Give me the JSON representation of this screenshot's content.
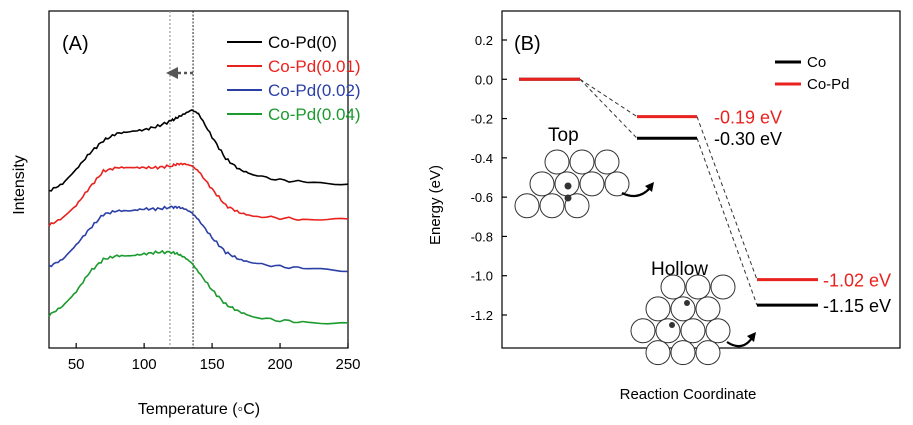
{
  "chart_data": [
    {
      "type": "line",
      "panel_label": "(A)",
      "xlabel": "Temperature (◦C)",
      "ylabel": "Intensity",
      "xlim": [
        30,
        250
      ],
      "xticks": [
        50,
        100,
        150,
        200,
        250
      ],
      "x": [
        30,
        40,
        50,
        60,
        70,
        80,
        90,
        100,
        110,
        120,
        125,
        130,
        135,
        140,
        150,
        160,
        170,
        180,
        200,
        220,
        250
      ],
      "series": [
        {
          "name": "Co-Pd(0)",
          "color": "#000000",
          "values": [
            0.3,
            0.34,
            0.42,
            0.51,
            0.58,
            0.62,
            0.63,
            0.64,
            0.66,
            0.69,
            0.71,
            0.73,
            0.75,
            0.73,
            0.6,
            0.48,
            0.42,
            0.39,
            0.36,
            0.35,
            0.34
          ]
        },
        {
          "name": "Co-Pd(0.01)",
          "color": "#e8231f",
          "values": [
            0.11,
            0.15,
            0.22,
            0.32,
            0.41,
            0.43,
            0.43,
            0.43,
            0.43,
            0.44,
            0.45,
            0.45,
            0.44,
            0.41,
            0.31,
            0.22,
            0.18,
            0.16,
            0.15,
            0.14,
            0.14
          ]
        },
        {
          "name": "Co-Pd(0.02)",
          "color": "#2b3fa6",
          "values": [
            -0.12,
            -0.08,
            0.0,
            0.09,
            0.17,
            0.19,
            0.19,
            0.2,
            0.2,
            0.21,
            0.21,
            0.2,
            0.18,
            0.14,
            0.04,
            -0.04,
            -0.08,
            -0.1,
            -0.12,
            -0.13,
            -0.14
          ]
        },
        {
          "name": "Co-Pd(0.04)",
          "color": "#1b9a2e",
          "values": [
            -0.39,
            -0.34,
            -0.26,
            -0.15,
            -0.08,
            -0.06,
            -0.06,
            -0.05,
            -0.04,
            -0.04,
            -0.05,
            -0.07,
            -0.1,
            -0.15,
            -0.25,
            -0.33,
            -0.37,
            -0.4,
            -0.42,
            -0.43,
            -0.44
          ]
        }
      ],
      "annotations": {
        "dashed_vlines_x": [
          119,
          136
        ],
        "arrow": "left"
      },
      "legend_position": "top-right"
    },
    {
      "type": "energy-diagram",
      "panel_label": "(B)",
      "xlabel": "Reaction Coordinate",
      "ylabel": "Energy (eV)",
      "ylim": [
        -1.3,
        0.2
      ],
      "yticks": [
        "0.2",
        "0.0",
        "-0.2",
        "-0.4",
        "-0.6",
        "-0.8",
        "-1.0",
        "-1.2"
      ],
      "series": [
        {
          "name": "Co",
          "color": "#000000",
          "values": [
            0.0,
            -0.3,
            -1.15
          ]
        },
        {
          "name": "Co-Pd",
          "color": "#e8231f",
          "values": [
            0.0,
            -0.19,
            -1.02
          ]
        }
      ],
      "level_labels": [
        {
          "text": "-0.19 eV",
          "color": "#e8231f"
        },
        {
          "text": "-0.30 eV",
          "color": "#000000"
        },
        {
          "text": "-1.02 eV",
          "color": "#e8231f"
        },
        {
          "text": "-1.15 eV",
          "color": "#000000"
        }
      ],
      "site_labels": [
        "Top",
        "Hollow"
      ],
      "legend_position": "top-right"
    }
  ]
}
